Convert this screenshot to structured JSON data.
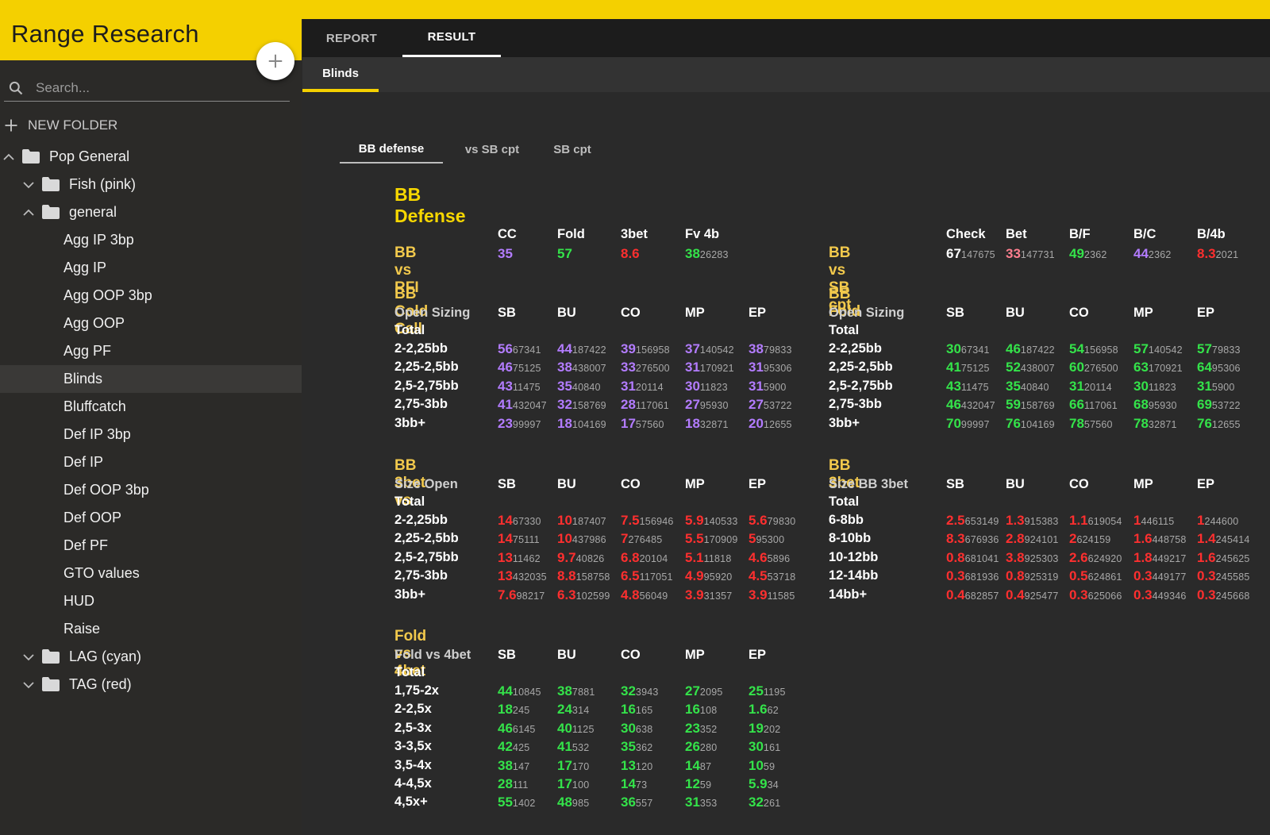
{
  "app": {
    "title": "Range Research",
    "accent": "#f4d000"
  },
  "sidebar": {
    "add_icon": "plus-icon",
    "search_placeholder": "Search...",
    "new_folder": "NEW FOLDER",
    "tree": [
      {
        "label": "Pop General",
        "type": "folder",
        "expanded": true,
        "depth": 0
      },
      {
        "label": "Fish (pink)",
        "type": "folder",
        "expanded": false,
        "depth": 1
      },
      {
        "label": "general",
        "type": "folder",
        "expanded": true,
        "depth": 1
      },
      {
        "label": "Agg IP 3bp",
        "type": "item",
        "depth": 2
      },
      {
        "label": "Agg IP",
        "type": "item",
        "depth": 2
      },
      {
        "label": "Agg OOP 3bp",
        "type": "item",
        "depth": 2
      },
      {
        "label": "Agg OOP",
        "type": "item",
        "depth": 2
      },
      {
        "label": "Agg PF",
        "type": "item",
        "depth": 2
      },
      {
        "label": "Blinds",
        "type": "item",
        "depth": 2,
        "selected": true
      },
      {
        "label": "Bluffcatch",
        "type": "item",
        "depth": 2
      },
      {
        "label": "Def IP 3bp",
        "type": "item",
        "depth": 2
      },
      {
        "label": "Def IP",
        "type": "item",
        "depth": 2
      },
      {
        "label": "Def OOP 3bp",
        "type": "item",
        "depth": 2
      },
      {
        "label": "Def OOP",
        "type": "item",
        "depth": 2
      },
      {
        "label": "Def PF",
        "type": "item",
        "depth": 2
      },
      {
        "label": "GTO values",
        "type": "item",
        "depth": 2
      },
      {
        "label": "HUD",
        "type": "item",
        "depth": 2
      },
      {
        "label": "Raise",
        "type": "item",
        "depth": 2
      },
      {
        "label": "LAG (cyan)",
        "type": "folder",
        "expanded": false,
        "depth": 1
      },
      {
        "label": "TAG (red)",
        "type": "folder",
        "expanded": false,
        "depth": 1
      }
    ]
  },
  "tabs": {
    "report": "REPORT",
    "result": "RESULT",
    "blinds": "Blinds"
  },
  "subtabs": [
    "BB defense",
    "vs SB cpt",
    "SB cpt"
  ],
  "report": {
    "title": "BB Defense",
    "bb_vs_rfi": {
      "label": "BB vs RFI",
      "cols": [
        "CC",
        "Fold",
        "3bet",
        "Fv 4b"
      ],
      "values": [
        {
          "v": "35",
          "n": "",
          "color": "purple"
        },
        {
          "v": "57",
          "n": "",
          "color": "green"
        },
        {
          "v": "8.6",
          "n": "",
          "color": "red"
        },
        {
          "v": "38",
          "n": "26283",
          "color": "green"
        }
      ]
    },
    "bb_vs_sb_cpt": {
      "label": "BB vs SB cpt",
      "cols": [
        "Check",
        "Bet",
        "B/F",
        "B/C",
        "B/4b"
      ],
      "values": [
        {
          "v": "67",
          "n": "147675",
          "color": "white"
        },
        {
          "v": "33",
          "n": "147731",
          "color": "pink"
        },
        {
          "v": "49",
          "n": "2362",
          "color": "green"
        },
        {
          "v": "44",
          "n": "2362",
          "color": "purple"
        },
        {
          "v": "8.3",
          "n": "2021",
          "color": "red"
        }
      ]
    },
    "sections": [
      {
        "title": "BB Cold Call",
        "sub1": "Open Sizing",
        "sub2": "Total",
        "cols": [
          "SB",
          "BU",
          "CO",
          "MP",
          "EP"
        ],
        "color": "purple",
        "rows": [
          {
            "label": "2-2,25bb",
            "cells": [
              [
                "56",
                "67341"
              ],
              [
                "44",
                "187422"
              ],
              [
                "39",
                "156958"
              ],
              [
                "37",
                "140542"
              ],
              [
                "38",
                "79833"
              ]
            ]
          },
          {
            "label": "2,25-2,5bb",
            "cells": [
              [
                "46",
                "75125"
              ],
              [
                "38",
                "438007"
              ],
              [
                "33",
                "276500"
              ],
              [
                "31",
                "170921"
              ],
              [
                "31",
                "95306"
              ]
            ]
          },
          {
            "label": "2,5-2,75bb",
            "cells": [
              [
                "43",
                "11475"
              ],
              [
                "35",
                "40840"
              ],
              [
                "31",
                "20114"
              ],
              [
                "30",
                "11823"
              ],
              [
                "31",
                "5900"
              ]
            ]
          },
          {
            "label": "2,75-3bb",
            "cells": [
              [
                "41",
                "432047"
              ],
              [
                "32",
                "158769"
              ],
              [
                "28",
                "117061"
              ],
              [
                "27",
                "95930"
              ],
              [
                "27",
                "53722"
              ]
            ]
          },
          {
            "label": "3bb+",
            "cells": [
              [
                "23",
                "99997"
              ],
              [
                "18",
                "104169"
              ],
              [
                "17",
                "57560"
              ],
              [
                "18",
                "32871"
              ],
              [
                "20",
                "12655"
              ]
            ]
          }
        ]
      },
      {
        "title": "BB Fold",
        "sub1": "Open Sizing",
        "sub2": "Total",
        "cols": [
          "SB",
          "BU",
          "CO",
          "MP",
          "EP"
        ],
        "color": "green",
        "rows": [
          {
            "label": "2-2,25bb",
            "cells": [
              [
                "30",
                "67341"
              ],
              [
                "46",
                "187422"
              ],
              [
                "54",
                "156958"
              ],
              [
                "57",
                "140542"
              ],
              [
                "57",
                "79833"
              ]
            ]
          },
          {
            "label": "2,25-2,5bb",
            "cells": [
              [
                "41",
                "75125"
              ],
              [
                "52",
                "438007"
              ],
              [
                "60",
                "276500"
              ],
              [
                "63",
                "170921"
              ],
              [
                "64",
                "95306"
              ]
            ]
          },
          {
            "label": "2,5-2,75bb",
            "cells": [
              [
                "43",
                "11475"
              ],
              [
                "35",
                "40840"
              ],
              [
                "31",
                "20114"
              ],
              [
                "30",
                "11823"
              ],
              [
                "31",
                "5900"
              ]
            ]
          },
          {
            "label": "2,75-3bb",
            "cells": [
              [
                "46",
                "432047"
              ],
              [
                "59",
                "158769"
              ],
              [
                "66",
                "117061"
              ],
              [
                "68",
                "95930"
              ],
              [
                "69",
                "53722"
              ]
            ]
          },
          {
            "label": "3bb+",
            "cells": [
              [
                "70",
                "99997"
              ],
              [
                "76",
                "104169"
              ],
              [
                "78",
                "57560"
              ],
              [
                "78",
                "32871"
              ],
              [
                "76",
                "12655"
              ]
            ]
          }
        ]
      },
      {
        "title": "BB 3bet vs",
        "sub1": "Size Open",
        "sub2": "Total",
        "cols": [
          "SB",
          "BU",
          "CO",
          "MP",
          "EP"
        ],
        "color": "red",
        "rows": [
          {
            "label": "2-2,25bb",
            "cells": [
              [
                "14",
                "67330"
              ],
              [
                "10",
                "187407"
              ],
              [
                "7.5",
                "156946"
              ],
              [
                "5.9",
                "140533"
              ],
              [
                "5.6",
                "79830"
              ]
            ]
          },
          {
            "label": "2,25-2,5bb",
            "cells": [
              [
                "14",
                "75111"
              ],
              [
                "10",
                "437986"
              ],
              [
                "7",
                "276485"
              ],
              [
                "5.5",
                "170909"
              ],
              [
                "5",
                "95300"
              ]
            ]
          },
          {
            "label": "2,5-2,75bb",
            "cells": [
              [
                "13",
                "11462"
              ],
              [
                "9.7",
                "40826"
              ],
              [
                "6.8",
                "20104"
              ],
              [
                "5.1",
                "11818"
              ],
              [
                "4.6",
                "5896"
              ]
            ]
          },
          {
            "label": "2,75-3bb",
            "cells": [
              [
                "13",
                "432035"
              ],
              [
                "8.8",
                "158758"
              ],
              [
                "6.5",
                "117051"
              ],
              [
                "4.9",
                "95920"
              ],
              [
                "4.5",
                "53718"
              ]
            ]
          },
          {
            "label": "3bb+",
            "cells": [
              [
                "7.6",
                "98217"
              ],
              [
                "6.3",
                "102599"
              ],
              [
                "4.8",
                "56049"
              ],
              [
                "3.9",
                "31357"
              ],
              [
                "3.9",
                "11585"
              ]
            ]
          }
        ]
      },
      {
        "title": "BB 3bet",
        "sub1": "Size BB 3bet",
        "sub2": "Total",
        "cols": [
          "SB",
          "BU",
          "CO",
          "MP",
          "EP"
        ],
        "color": "red",
        "rows": [
          {
            "label": "6-8bb",
            "cells": [
              [
                "2.5",
                "653149"
              ],
              [
                "1.3",
                "915383"
              ],
              [
                "1.1",
                "619054"
              ],
              [
                "1",
                "446115"
              ],
              [
                "1",
                "244600"
              ]
            ]
          },
          {
            "label": "8-10bb",
            "cells": [
              [
                "8.3",
                "676936"
              ],
              [
                "2.8",
                "924101"
              ],
              [
                "2",
                "624159"
              ],
              [
                "1.6",
                "448758"
              ],
              [
                "1.4",
                "245414"
              ]
            ]
          },
          {
            "label": "10-12bb",
            "cells": [
              [
                "0.8",
                "681041"
              ],
              [
                "3.8",
                "925303"
              ],
              [
                "2.6",
                "624920"
              ],
              [
                "1.8",
                "449217"
              ],
              [
                "1.6",
                "245625"
              ]
            ]
          },
          {
            "label": "12-14bb",
            "cells": [
              [
                "0.3",
                "681936"
              ],
              [
                "0.8",
                "925319"
              ],
              [
                "0.5",
                "624861"
              ],
              [
                "0.3",
                "449177"
              ],
              [
                "0.3",
                "245585"
              ]
            ]
          },
          {
            "label": "14bb+",
            "cells": [
              [
                "0.4",
                "682857"
              ],
              [
                "0.4",
                "925477"
              ],
              [
                "0.3",
                "625066"
              ],
              [
                "0.3",
                "449346"
              ],
              [
                "0.3",
                "245668"
              ]
            ]
          }
        ]
      },
      {
        "title": "Fold vs 4bet",
        "sub1": "Fold vs 4bet",
        "sub2": "Total",
        "cols": [
          "SB",
          "BU",
          "CO",
          "MP",
          "EP"
        ],
        "color": "green",
        "rows": [
          {
            "label": "1,75-2x",
            "cells": [
              [
                "44",
                "10845"
              ],
              [
                "38",
                "7881"
              ],
              [
                "32",
                "3943"
              ],
              [
                "27",
                "2095"
              ],
              [
                "25",
                "1195"
              ]
            ]
          },
          {
            "label": "2-2,5x",
            "cells": [
              [
                "18",
                "245"
              ],
              [
                "24",
                "314"
              ],
              [
                "16",
                "165"
              ],
              [
                "16",
                "108"
              ],
              [
                "1.6",
                "62"
              ]
            ]
          },
          {
            "label": "2,5-3x",
            "cells": [
              [
                "46",
                "6145"
              ],
              [
                "40",
                "1125"
              ],
              [
                "30",
                "638"
              ],
              [
                "23",
                "352"
              ],
              [
                "19",
                "202"
              ]
            ]
          },
          {
            "label": "3-3,5x",
            "cells": [
              [
                "42",
                "425"
              ],
              [
                "41",
                "532"
              ],
              [
                "35",
                "362"
              ],
              [
                "26",
                "280"
              ],
              [
                "30",
                "161"
              ]
            ]
          },
          {
            "label": "3,5-4x",
            "cells": [
              [
                "38",
                "147"
              ],
              [
                "17",
                "170"
              ],
              [
                "13",
                "120"
              ],
              [
                "14",
                "87"
              ],
              [
                "10",
                "59"
              ]
            ]
          },
          {
            "label": "4-4,5x",
            "cells": [
              [
                "28",
                "111"
              ],
              [
                "17",
                "100"
              ],
              [
                "14",
                "73"
              ],
              [
                "12",
                "59"
              ],
              [
                "5.9",
                "34"
              ]
            ]
          },
          {
            "label": "4,5x+",
            "cells": [
              [
                "55",
                "1402"
              ],
              [
                "48",
                "985"
              ],
              [
                "36",
                "557"
              ],
              [
                "31",
                "353"
              ],
              [
                "32",
                "261"
              ]
            ]
          }
        ]
      }
    ]
  }
}
